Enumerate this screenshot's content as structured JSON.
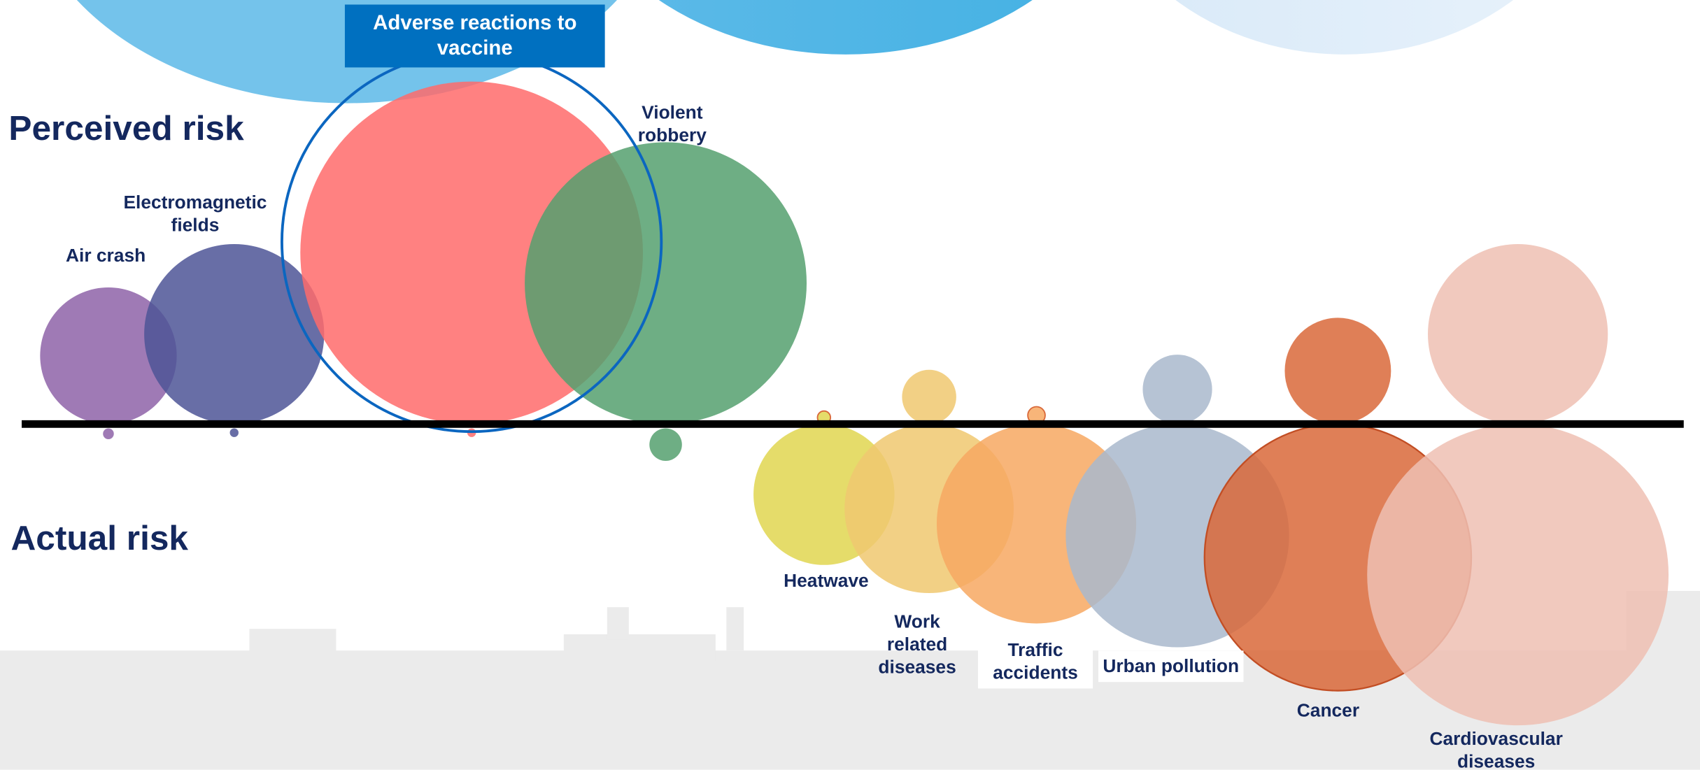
{
  "chart_data": {
    "type": "bubble",
    "categories": [
      "Air crash",
      "Electromagnetic fields",
      "Adverse reactions to vaccine",
      "Violent robbery",
      "Heatwave",
      "Work related diseases",
      "Traffic accidents",
      "Urban pollution",
      "Cancer",
      "Cardiovascular diseases"
    ],
    "colors": [
      "#8e63a8",
      "#4e5597",
      "#ff6b6b",
      "#55a06e",
      "#e0d650",
      "#f0c870",
      "#f7a862",
      "#a9b8cc",
      "#d9693a",
      "#efc0b3"
    ],
    "series": [
      {
        "name": "Perceived risk",
        "values": [
          126,
          166,
          316,
          260,
          12,
          50,
          16,
          64,
          98,
          166
        ]
      },
      {
        "name": "Actual risk",
        "values": [
          10,
          8,
          8,
          30,
          130,
          156,
          184,
          206,
          246,
          278
        ]
      }
    ]
  }
}
